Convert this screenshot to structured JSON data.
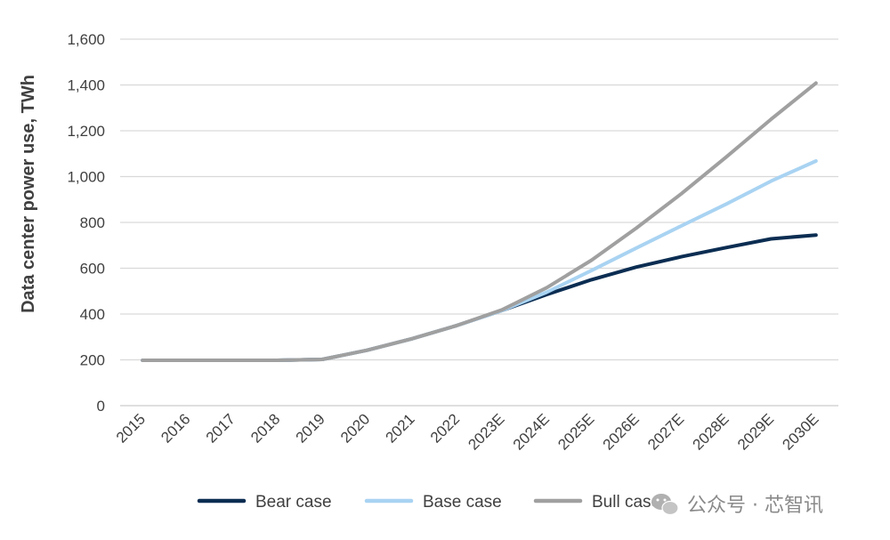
{
  "chart_data": {
    "type": "line",
    "title": "",
    "xlabel": "",
    "ylabel": "Data center power use, TWh",
    "ylim": [
      0,
      1600
    ],
    "yticks": [
      0,
      200,
      400,
      600,
      800,
      1000,
      1200,
      1400,
      1600
    ],
    "ytick_labels": [
      "0",
      "200",
      "400",
      "600",
      "800",
      "1,000",
      "1,200",
      "1,400",
      "1,600"
    ],
    "grid": true,
    "legend_position": "bottom",
    "categories": [
      "2015",
      "2016",
      "2017",
      "2018",
      "2019",
      "2020",
      "2021",
      "2022",
      "2023E",
      "2024E",
      "2025E",
      "2026E",
      "2027E",
      "2028E",
      "2029E",
      "2030E"
    ],
    "series": [
      {
        "name": "Bear case",
        "color": "#0b2d52",
        "values": [
          198,
          198,
          198,
          198,
          202,
          242,
          292,
          350,
          415,
          485,
          550,
          605,
          650,
          690,
          728,
          745
        ]
      },
      {
        "name": "Base case",
        "color": "#a9d3f2",
        "values": [
          198,
          198,
          198,
          198,
          202,
          242,
          292,
          350,
          415,
          495,
          590,
          688,
          785,
          880,
          980,
          1068
        ]
      },
      {
        "name": "Bull case",
        "color": "#a0a0a0",
        "values": [
          198,
          198,
          198,
          198,
          202,
          242,
          292,
          350,
          418,
          515,
          635,
          775,
          925,
          1085,
          1250,
          1408
        ]
      }
    ]
  },
  "watermark": {
    "text": "公众号 · 芯智讯",
    "icon": "wechat-icon"
  }
}
